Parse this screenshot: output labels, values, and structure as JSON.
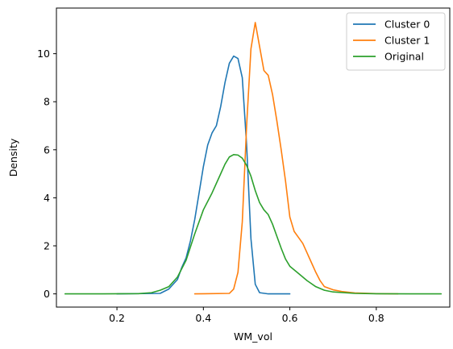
{
  "chart_data": {
    "type": "line",
    "title": "",
    "xlabel": "WM_vol",
    "ylabel": "Density",
    "xlim": [
      0.06,
      0.97
    ],
    "ylim": [
      -0.55,
      11.9
    ],
    "xticks": [
      {
        "value": 0.2,
        "label": "0.2"
      },
      {
        "value": 0.4,
        "label": "0.4"
      },
      {
        "value": 0.6,
        "label": "0.6"
      },
      {
        "value": 0.8,
        "label": "0.8"
      }
    ],
    "yticks": [
      {
        "value": 0,
        "label": "0"
      },
      {
        "value": 2,
        "label": "2"
      },
      {
        "value": 4,
        "label": "4"
      },
      {
        "value": 6,
        "label": "6"
      },
      {
        "value": 8,
        "label": "8"
      },
      {
        "value": 10,
        "label": "10"
      }
    ],
    "grid": false,
    "legend_position": "top-right",
    "series": [
      {
        "name": "Cluster 0",
        "color": "#1f77b4",
        "points": [
          [
            0.2,
            0
          ],
          [
            0.3,
            0.02
          ],
          [
            0.32,
            0.2
          ],
          [
            0.34,
            0.6
          ],
          [
            0.35,
            1.1
          ],
          [
            0.36,
            1.5
          ],
          [
            0.37,
            2.2
          ],
          [
            0.38,
            3.1
          ],
          [
            0.39,
            4.2
          ],
          [
            0.4,
            5.3
          ],
          [
            0.41,
            6.2
          ],
          [
            0.42,
            6.7
          ],
          [
            0.43,
            7.0
          ],
          [
            0.44,
            7.8
          ],
          [
            0.45,
            8.8
          ],
          [
            0.46,
            9.6
          ],
          [
            0.47,
            9.9
          ],
          [
            0.48,
            9.8
          ],
          [
            0.49,
            9.0
          ],
          [
            0.5,
            6.2
          ],
          [
            0.51,
            2.3
          ],
          [
            0.52,
            0.4
          ],
          [
            0.53,
            0.05
          ],
          [
            0.55,
            0
          ],
          [
            0.6,
            0
          ]
        ]
      },
      {
        "name": "Cluster 1",
        "color": "#ff7f0e",
        "points": [
          [
            0.38,
            0
          ],
          [
            0.46,
            0.02
          ],
          [
            0.47,
            0.2
          ],
          [
            0.48,
            0.9
          ],
          [
            0.49,
            3.0
          ],
          [
            0.5,
            7.0
          ],
          [
            0.51,
            10.2
          ],
          [
            0.52,
            11.3
          ],
          [
            0.53,
            10.3
          ],
          [
            0.54,
            9.3
          ],
          [
            0.55,
            9.1
          ],
          [
            0.56,
            8.3
          ],
          [
            0.57,
            7.2
          ],
          [
            0.58,
            6.0
          ],
          [
            0.59,
            4.7
          ],
          [
            0.6,
            3.2
          ],
          [
            0.61,
            2.6
          ],
          [
            0.62,
            2.35
          ],
          [
            0.63,
            2.1
          ],
          [
            0.64,
            1.7
          ],
          [
            0.65,
            1.3
          ],
          [
            0.66,
            0.9
          ],
          [
            0.67,
            0.55
          ],
          [
            0.68,
            0.3
          ],
          [
            0.7,
            0.17
          ],
          [
            0.72,
            0.1
          ],
          [
            0.75,
            0.04
          ],
          [
            0.8,
            0.01
          ],
          [
            0.85,
            0
          ]
        ]
      },
      {
        "name": "Original",
        "color": "#2ca02c",
        "points": [
          [
            0.08,
            0
          ],
          [
            0.15,
            0
          ],
          [
            0.25,
            0.01
          ],
          [
            0.28,
            0.05
          ],
          [
            0.3,
            0.15
          ],
          [
            0.32,
            0.3
          ],
          [
            0.34,
            0.7
          ],
          [
            0.36,
            1.4
          ],
          [
            0.38,
            2.5
          ],
          [
            0.4,
            3.5
          ],
          [
            0.42,
            4.2
          ],
          [
            0.44,
            5.0
          ],
          [
            0.45,
            5.4
          ],
          [
            0.46,
            5.7
          ],
          [
            0.47,
            5.8
          ],
          [
            0.48,
            5.78
          ],
          [
            0.49,
            5.65
          ],
          [
            0.5,
            5.35
          ],
          [
            0.51,
            4.9
          ],
          [
            0.52,
            4.3
          ],
          [
            0.53,
            3.8
          ],
          [
            0.54,
            3.5
          ],
          [
            0.55,
            3.3
          ],
          [
            0.56,
            2.9
          ],
          [
            0.57,
            2.4
          ],
          [
            0.58,
            1.9
          ],
          [
            0.59,
            1.45
          ],
          [
            0.6,
            1.15
          ],
          [
            0.62,
            0.85
          ],
          [
            0.64,
            0.55
          ],
          [
            0.66,
            0.3
          ],
          [
            0.68,
            0.15
          ],
          [
            0.7,
            0.08
          ],
          [
            0.75,
            0.02
          ],
          [
            0.8,
            0.005
          ],
          [
            0.95,
            0
          ]
        ]
      }
    ]
  }
}
